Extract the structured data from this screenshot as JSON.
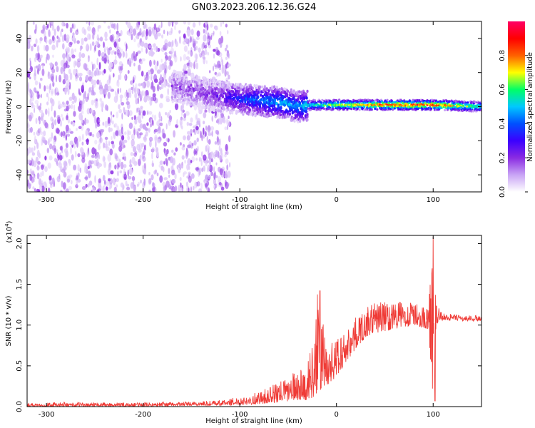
{
  "title": "GN03.2023.206.12.36.G24",
  "colors": {
    "snr_line": "#ef3b36",
    "spectrogram_low": "#e6d0f7",
    "spectrogram_mid": "#7a1cf0",
    "spectrogram_high": "#ff2c2c"
  },
  "chart_data": [
    {
      "type": "heatmap",
      "title": "",
      "xlabel": "Height of straight line (km)",
      "ylabel": "Frequency (Hz)",
      "xlim": [
        -320,
        150
      ],
      "ylim": [
        -50,
        50
      ],
      "x_ticks": [
        -300,
        -200,
        -100,
        0,
        100
      ],
      "y_ticks": [
        -40,
        -20,
        0,
        20,
        40
      ],
      "colorbar": {
        "label": "Normalized spectral amplitude",
        "range": [
          0.0,
          1.0
        ],
        "ticks": [
          0.0,
          0.2,
          0.4,
          0.6,
          0.8
        ],
        "colormap": [
          "#ffffff",
          "#c9a4f5",
          "#8a2be2",
          "#3b00ff",
          "#0050ff",
          "#00c8ff",
          "#00ff66",
          "#ffff00",
          "#ff6000",
          "#ff0000",
          "#ff0066"
        ]
      },
      "signal_track": {
        "x": [
          -170,
          -150,
          -130,
          -110,
          -90,
          -70,
          -55,
          -40,
          -25,
          0,
          50,
          100,
          150
        ],
        "frequency": [
          12,
          10,
          7,
          5,
          4,
          3,
          2,
          0,
          1,
          1,
          1,
          1,
          0
        ],
        "amplitude": [
          0.15,
          0.18,
          0.2,
          0.3,
          0.4,
          0.45,
          0.5,
          0.45,
          0.55,
          0.7,
          0.85,
          0.9,
          0.6
        ]
      },
      "noise_region": {
        "x_range": [
          -320,
          -110
        ],
        "frequency_range": [
          -50,
          50
        ]
      }
    },
    {
      "type": "line",
      "title": "",
      "xlabel": "Height of straight line (km)",
      "ylabel": "SNR (10 * v/v)",
      "y_multiplier": "(x10",
      "y_multiplier_exp": "4",
      "y_multiplier_close": ")",
      "xlim": [
        -320,
        150
      ],
      "ylim": [
        0.0,
        2.1
      ],
      "x_ticks": [
        -300,
        -200,
        -100,
        0,
        100
      ],
      "y_ticks": [
        0.0,
        0.5,
        1.0,
        1.5,
        2.0
      ],
      "y_tick_labels": [
        "0.0",
        "0.5",
        "1.0",
        "1.5",
        "2.0"
      ],
      "envelope": {
        "x": [
          -320,
          -200,
          -150,
          -120,
          -100,
          -80,
          -60,
          -40,
          -30,
          -20,
          -10,
          0,
          10,
          20,
          30,
          40,
          60,
          80,
          95,
          100,
          103,
          110,
          130,
          150
        ],
        "min": [
          0.0,
          0.0,
          0.01,
          0.01,
          0.02,
          0.03,
          0.05,
          0.08,
          0.08,
          0.12,
          0.25,
          0.35,
          0.55,
          0.7,
          0.85,
          0.9,
          0.95,
          1.0,
          0.95,
          0.1,
          1.0,
          1.06,
          1.05,
          1.05
        ],
        "max": [
          0.05,
          0.05,
          0.06,
          0.08,
          0.12,
          0.18,
          0.3,
          0.45,
          0.5,
          1.4,
          0.8,
          0.85,
          0.95,
          1.1,
          1.2,
          1.3,
          1.3,
          1.28,
          1.2,
          2.1,
          1.25,
          1.15,
          1.12,
          1.12
        ]
      },
      "peaks": [
        {
          "x": -17,
          "y": 1.42
        },
        {
          "x": 100,
          "y": 2.08
        },
        {
          "x": 102,
          "y": 0.07
        }
      ]
    }
  ]
}
